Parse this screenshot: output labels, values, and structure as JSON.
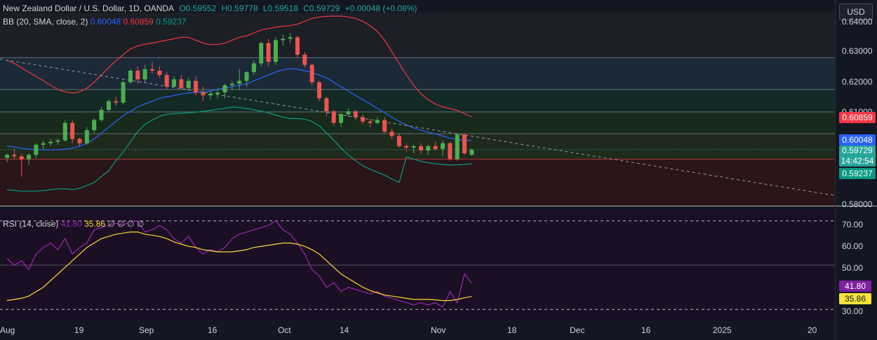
{
  "header": {
    "symbol": "New Zealand Dollar / U.S. Dollar, 1D, OANDA",
    "open": "O0.59552",
    "high": "H0.59778",
    "low": "L0.59518",
    "close": "C0.59729",
    "change": "+0.00048 (+0.08%)"
  },
  "bb_header": {
    "label": "BB (20, SMA, close, 2)",
    "basis": "0.60048",
    "upper": "0.60859",
    "lower": "0.59237"
  },
  "rsi_header": {
    "label": "RSI (14, close)",
    "rsi": "41.80",
    "ma": "35.86",
    "extra": "∅ ∅ ∅ ∅"
  },
  "currency_button": "USD",
  "price_axis_ticks": [
    "0.64000",
    "0.63000",
    "0.62000",
    "0.61000",
    "0.58000"
  ],
  "rsi_axis_ticks": [
    "70.00",
    "60.00",
    "50.00",
    "30.00"
  ],
  "tags": {
    "upper": "0.60859",
    "basis": "0.60048",
    "last": "0.59729",
    "countdown": "14:42:54",
    "lower": "0.59237",
    "rsi": "41.80",
    "rsi_ma": "35.86"
  },
  "x_axis_ticks": [
    "Aug",
    "19",
    "Sep",
    "16",
    "Oct",
    "14",
    "Nov",
    "18",
    "Dec",
    "16",
    "2025",
    "20"
  ],
  "colors": {
    "up": "#26a69a",
    "up_candle": "#4caf50",
    "down": "#ef5350",
    "bb_upper": "#f23645",
    "bb_basis": "#2962ff",
    "bb_lower": "#089981",
    "rsi": "#9c27b0",
    "rsi_ma": "#fdd835",
    "tag_upper": "#f23645",
    "tag_basis": "#2962ff",
    "tag_lower": "#089981",
    "tag_rsi": "#7e1fa0",
    "tag_rsi_ma": "#f7e33c"
  },
  "chart_data": [
    {
      "type": "candlestick",
      "title": "New Zealand Dollar / U.S. Dollar, 1D, OANDA",
      "ylim": [
        0.578,
        0.6445
      ],
      "candles": [
        [
          0.5945,
          0.596,
          0.593,
          0.5955
        ],
        [
          0.5955,
          0.5975,
          0.594,
          0.595
        ],
        [
          0.595,
          0.5958,
          0.588,
          0.594
        ],
        [
          0.594,
          0.596,
          0.592,
          0.5955
        ],
        [
          0.5955,
          0.5995,
          0.5945,
          0.599
        ],
        [
          0.599,
          0.6005,
          0.5975,
          0.5995
        ],
        [
          0.5995,
          0.601,
          0.5985,
          0.6
        ],
        [
          0.6,
          0.6012,
          0.599,
          0.6005
        ],
        [
          0.6005,
          0.6075,
          0.6,
          0.6065
        ],
        [
          0.6065,
          0.6075,
          0.5995,
          0.601
        ],
        [
          0.601,
          0.6015,
          0.5985,
          0.5995
        ],
        [
          0.5995,
          0.605,
          0.599,
          0.604
        ],
        [
          0.604,
          0.608,
          0.603,
          0.6075
        ],
        [
          0.6075,
          0.612,
          0.607,
          0.611
        ],
        [
          0.611,
          0.6145,
          0.6105,
          0.614
        ],
        [
          0.614,
          0.6155,
          0.6125,
          0.6135
        ],
        [
          0.6135,
          0.621,
          0.613,
          0.6205
        ],
        [
          0.6205,
          0.625,
          0.62,
          0.6245
        ],
        [
          0.6245,
          0.626,
          0.62,
          0.6215
        ],
        [
          0.6215,
          0.6265,
          0.6205,
          0.625
        ],
        [
          0.625,
          0.6275,
          0.6235,
          0.6245
        ],
        [
          0.6245,
          0.626,
          0.622,
          0.623
        ],
        [
          0.623,
          0.624,
          0.618,
          0.619
        ],
        [
          0.619,
          0.6225,
          0.6185,
          0.6215
        ],
        [
          0.6215,
          0.623,
          0.618,
          0.6185
        ],
        [
          0.6185,
          0.622,
          0.6175,
          0.621
        ],
        [
          0.621,
          0.6225,
          0.616,
          0.617
        ],
        [
          0.617,
          0.619,
          0.614,
          0.616
        ],
        [
          0.616,
          0.6175,
          0.6145,
          0.6165
        ],
        [
          0.6165,
          0.6185,
          0.615,
          0.617
        ],
        [
          0.617,
          0.62,
          0.615,
          0.6195
        ],
        [
          0.6195,
          0.621,
          0.618,
          0.62
        ],
        [
          0.62,
          0.625,
          0.618,
          0.621
        ],
        [
          0.621,
          0.6245,
          0.619,
          0.624
        ],
        [
          0.624,
          0.628,
          0.623,
          0.627
        ],
        [
          0.627,
          0.6345,
          0.626,
          0.634
        ],
        [
          0.634,
          0.6355,
          0.626,
          0.6275
        ],
        [
          0.6275,
          0.636,
          0.6265,
          0.635
        ],
        [
          0.635,
          0.637,
          0.633,
          0.6355
        ],
        [
          0.6355,
          0.6375,
          0.634,
          0.636
        ],
        [
          0.636,
          0.6365,
          0.629,
          0.63
        ],
        [
          0.63,
          0.631,
          0.6255,
          0.6265
        ],
        [
          0.6265,
          0.627,
          0.6195,
          0.6205
        ],
        [
          0.6205,
          0.621,
          0.614,
          0.615
        ],
        [
          0.615,
          0.6155,
          0.609,
          0.6105
        ],
        [
          0.6105,
          0.611,
          0.6055,
          0.6065
        ],
        [
          0.6065,
          0.61,
          0.605,
          0.6095
        ],
        [
          0.6095,
          0.6115,
          0.6085,
          0.6105
        ],
        [
          0.6105,
          0.611,
          0.6075,
          0.6085
        ],
        [
          0.6085,
          0.6095,
          0.606,
          0.607
        ],
        [
          0.607,
          0.608,
          0.605,
          0.6065
        ],
        [
          0.6065,
          0.6085,
          0.606,
          0.6075
        ],
        [
          0.6075,
          0.6085,
          0.603,
          0.6035
        ],
        [
          0.6035,
          0.6045,
          0.601,
          0.602
        ],
        [
          0.602,
          0.603,
          0.598,
          0.5985
        ],
        [
          0.5985,
          0.5995,
          0.5965,
          0.598
        ],
        [
          0.598,
          0.599,
          0.596,
          0.5985
        ],
        [
          0.5985,
          0.5995,
          0.596,
          0.597
        ],
        [
          0.597,
          0.599,
          0.5955,
          0.5985
        ],
        [
          0.5985,
          0.6,
          0.597,
          0.5975
        ],
        [
          0.5975,
          0.6005,
          0.595,
          0.5995
        ],
        [
          0.5995,
          0.6,
          0.5935,
          0.594
        ],
        [
          0.594,
          0.603,
          0.5935,
          0.6025
        ],
        [
          0.6025,
          0.603,
          0.5955,
          0.596
        ],
        [
          0.5955,
          0.5978,
          0.5952,
          0.5973
        ]
      ],
      "bb_upper": [
        0.628,
        0.627,
        0.6255,
        0.624,
        0.6225,
        0.621,
        0.6195,
        0.618,
        0.6172,
        0.6168,
        0.6172,
        0.6185,
        0.6205,
        0.623,
        0.6255,
        0.628,
        0.63,
        0.632,
        0.633,
        0.6336,
        0.634,
        0.6345,
        0.635,
        0.6355,
        0.636,
        0.636,
        0.635,
        0.634,
        0.6335,
        0.6335,
        0.634,
        0.635,
        0.636,
        0.6365,
        0.6375,
        0.6385,
        0.639,
        0.6395,
        0.6398,
        0.64,
        0.6405,
        0.6415,
        0.6425,
        0.643,
        0.6432,
        0.6433,
        0.6433,
        0.643,
        0.6425,
        0.6415,
        0.64,
        0.638,
        0.635,
        0.631,
        0.627,
        0.623,
        0.6195,
        0.6165,
        0.6145,
        0.613,
        0.612,
        0.6115,
        0.6108,
        0.6097,
        0.6086
      ],
      "bb_basis": [
        0.5985,
        0.5982,
        0.5978,
        0.5975,
        0.5973,
        0.5972,
        0.5972,
        0.5973,
        0.5975,
        0.5978,
        0.5985,
        0.5995,
        0.601,
        0.603,
        0.605,
        0.607,
        0.609,
        0.6105,
        0.612,
        0.613,
        0.614,
        0.615,
        0.6155,
        0.616,
        0.6165,
        0.6168,
        0.617,
        0.6172,
        0.6175,
        0.618,
        0.6185,
        0.619,
        0.6195,
        0.62,
        0.621,
        0.622,
        0.623,
        0.624,
        0.6248,
        0.6252,
        0.625,
        0.6245,
        0.6238,
        0.623,
        0.622,
        0.6205,
        0.619,
        0.6175,
        0.616,
        0.6145,
        0.613,
        0.6115,
        0.61,
        0.6085,
        0.607,
        0.6058,
        0.6048,
        0.604,
        0.6033,
        0.6027,
        0.602,
        0.6013,
        0.6008,
        0.6005,
        0.6005
      ],
      "bb_lower": [
        0.5835,
        0.5832,
        0.583,
        0.583,
        0.583,
        0.5832,
        0.5835,
        0.5838,
        0.5838,
        0.5835,
        0.584,
        0.585,
        0.586,
        0.588,
        0.59,
        0.5935,
        0.5965,
        0.6,
        0.6035,
        0.606,
        0.6075,
        0.6088,
        0.6095,
        0.6097,
        0.6098,
        0.61,
        0.6102,
        0.6105,
        0.6108,
        0.6112,
        0.6115,
        0.612,
        0.6118,
        0.6115,
        0.611,
        0.6105,
        0.61,
        0.6092,
        0.6085,
        0.608,
        0.608,
        0.6078,
        0.607,
        0.6055,
        0.603,
        0.6005,
        0.5978,
        0.5955,
        0.5935,
        0.5918,
        0.5905,
        0.5895,
        0.5885,
        0.5872,
        0.586,
        0.5948,
        0.594,
        0.5933,
        0.5928,
        0.5925,
        0.5922,
        0.592,
        0.5921,
        0.5922,
        0.5924
      ],
      "trendline": {
        "start": 0.6285,
        "end": 0.5815
      }
    },
    {
      "type": "line",
      "title": "RSI (14, close)",
      "ylim": [
        25,
        75
      ],
      "series": [
        {
          "name": "RSI",
          "values": [
            53,
            50,
            52,
            48,
            55,
            58,
            60,
            57,
            62,
            55,
            58,
            60,
            66,
            67,
            68,
            69,
            68,
            70,
            70,
            65,
            66,
            68,
            66,
            62,
            60,
            63,
            58,
            55,
            57,
            56,
            58,
            62,
            64,
            65,
            66,
            67,
            68,
            70,
            66,
            64,
            60,
            55,
            48,
            45,
            40,
            42,
            38,
            40,
            39,
            38,
            37,
            38,
            36,
            35,
            34,
            33,
            32,
            33,
            32,
            33,
            31,
            38,
            33,
            46,
            41.8
          ]
        },
        {
          "name": "RSI MA",
          "values": [
            34,
            34.5,
            35,
            36,
            38,
            40,
            43,
            46,
            49,
            52,
            55,
            58,
            60,
            62,
            63,
            64,
            64.5,
            65,
            65,
            64,
            63.5,
            63,
            62,
            60.5,
            59.5,
            58.5,
            58,
            57,
            56.5,
            56,
            56,
            56,
            56.5,
            57,
            58,
            58.5,
            59,
            59.5,
            60,
            60,
            59.5,
            58.5,
            57,
            55,
            52,
            49,
            46,
            44,
            42,
            40,
            38.5,
            37.5,
            36.5,
            36,
            35.5,
            35,
            34.5,
            34.5,
            34.5,
            34.3,
            34,
            34,
            34.5,
            35.2,
            35.86
          ]
        }
      ]
    }
  ]
}
